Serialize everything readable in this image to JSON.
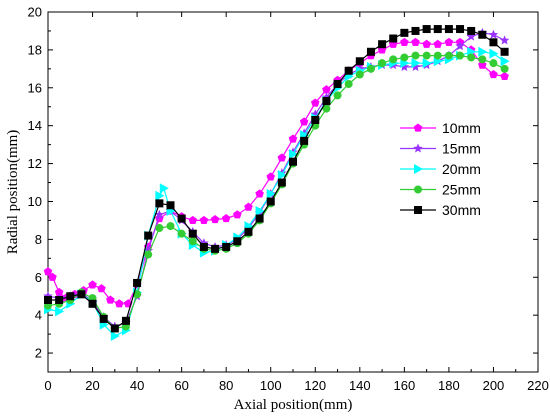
{
  "chart_data": {
    "type": "line",
    "xlabel": "Axial position(mm)",
    "ylabel": "Radial position(mm)",
    "xlim": [
      0,
      220
    ],
    "ylim": [
      1,
      20
    ],
    "xticks": [
      0,
      20,
      40,
      60,
      80,
      100,
      120,
      140,
      160,
      180,
      200,
      220
    ],
    "yticks": [
      2,
      4,
      6,
      8,
      10,
      12,
      14,
      16,
      18,
      20
    ],
    "grid": false,
    "legend": "right-middle",
    "series": [
      {
        "name": "10mm",
        "color": "#ff00ff",
        "marker": "pentagon",
        "x": [
          0,
          2,
          5,
          8,
          12,
          16,
          20,
          24,
          28,
          32,
          36,
          40,
          45,
          50,
          55,
          60,
          65,
          70,
          75,
          80,
          85,
          90,
          95,
          100,
          105,
          110,
          115,
          120,
          125,
          130,
          135,
          140,
          145,
          150,
          155,
          160,
          165,
          170,
          175,
          180,
          185,
          190,
          195,
          200,
          205
        ],
        "y": [
          6.3,
          6.0,
          5.2,
          4.9,
          5.1,
          5.3,
          5.6,
          5.4,
          4.8,
          4.6,
          4.6,
          5.6,
          7.6,
          9.1,
          9.5,
          9.2,
          9.0,
          9.0,
          9.05,
          9.1,
          9.3,
          9.7,
          10.4,
          11.3,
          12.3,
          13.3,
          14.2,
          15.2,
          15.9,
          16.4,
          16.9,
          17.3,
          17.7,
          18.0,
          18.3,
          18.4,
          18.4,
          18.3,
          18.3,
          18.4,
          18.4,
          18.0,
          17.2,
          16.7,
          16.6
        ]
      },
      {
        "name": "15mm",
        "color": "#9933ff",
        "marker": "star",
        "x": [
          0,
          5,
          10,
          15,
          20,
          25,
          30,
          35,
          40,
          45,
          50,
          55,
          60,
          65,
          70,
          75,
          80,
          85,
          90,
          95,
          100,
          105,
          110,
          115,
          120,
          125,
          130,
          135,
          140,
          145,
          150,
          155,
          160,
          165,
          170,
          175,
          180,
          185,
          190,
          195,
          200,
          205
        ],
        "y": [
          5.0,
          4.9,
          5.0,
          5.2,
          4.7,
          3.9,
          3.4,
          3.6,
          5.0,
          7.4,
          9.3,
          9.5,
          9.0,
          8.4,
          7.8,
          7.6,
          7.7,
          8.0,
          8.6,
          9.4,
          10.4,
          11.5,
          12.6,
          13.6,
          14.6,
          15.5,
          16.2,
          16.7,
          17.0,
          17.1,
          17.2,
          17.2,
          17.1,
          17.1,
          17.2,
          17.4,
          17.7,
          18.2,
          18.7,
          18.9,
          18.8,
          18.5
        ]
      },
      {
        "name": "20mm",
        "color": "#00ffff",
        "marker": "triangle-right",
        "x": [
          0,
          5,
          10,
          15,
          20,
          25,
          30,
          35,
          40,
          45,
          50,
          52,
          55,
          60,
          65,
          70,
          75,
          80,
          85,
          90,
          95,
          100,
          105,
          110,
          115,
          120,
          125,
          130,
          135,
          140,
          145,
          150,
          155,
          160,
          165,
          170,
          175,
          180,
          185,
          190,
          195,
          200,
          205
        ],
        "y": [
          4.3,
          4.2,
          4.6,
          5.1,
          4.7,
          3.5,
          2.9,
          3.2,
          5.2,
          8.2,
          10.3,
          10.7,
          9.5,
          8.3,
          7.7,
          7.3,
          7.4,
          7.7,
          8.1,
          8.7,
          9.5,
          10.4,
          11.4,
          12.5,
          13.5,
          14.4,
          15.3,
          16.0,
          16.6,
          16.9,
          17.1,
          17.2,
          17.3,
          17.3,
          17.3,
          17.3,
          17.4,
          17.5,
          17.7,
          17.9,
          17.9,
          17.8,
          17.4
        ]
      },
      {
        "name": "25mm",
        "color": "#33cc33",
        "marker": "circle",
        "x": [
          0,
          5,
          10,
          15,
          20,
          25,
          30,
          35,
          40,
          45,
          50,
          55,
          60,
          65,
          70,
          75,
          80,
          85,
          90,
          95,
          100,
          105,
          110,
          115,
          120,
          125,
          130,
          135,
          140,
          145,
          150,
          155,
          160,
          165,
          170,
          175,
          180,
          185,
          190,
          195,
          200,
          205
        ],
        "y": [
          4.5,
          4.6,
          4.8,
          5.2,
          4.9,
          3.9,
          3.3,
          3.4,
          5.1,
          7.2,
          8.6,
          8.7,
          8.3,
          7.9,
          7.5,
          7.4,
          7.5,
          7.8,
          8.3,
          9.0,
          9.9,
          10.9,
          12.0,
          13.0,
          14.0,
          14.9,
          15.6,
          16.2,
          16.7,
          17.0,
          17.3,
          17.5,
          17.6,
          17.7,
          17.7,
          17.7,
          17.7,
          17.7,
          17.6,
          17.5,
          17.3,
          17.0
        ]
      },
      {
        "name": "30mm",
        "color": "#000000",
        "marker": "square",
        "x": [
          0,
          5,
          10,
          15,
          20,
          25,
          30,
          35,
          40,
          45,
          50,
          55,
          60,
          65,
          70,
          75,
          80,
          85,
          90,
          95,
          100,
          105,
          110,
          115,
          120,
          125,
          130,
          135,
          140,
          145,
          150,
          155,
          160,
          165,
          170,
          175,
          180,
          185,
          190,
          195,
          200,
          205
        ],
        "y": [
          4.8,
          4.8,
          5.0,
          5.1,
          4.6,
          3.8,
          3.3,
          3.7,
          5.7,
          8.2,
          9.9,
          9.8,
          9.1,
          8.3,
          7.6,
          7.5,
          7.6,
          7.9,
          8.4,
          9.1,
          10.0,
          11.0,
          12.1,
          13.2,
          14.3,
          15.3,
          16.2,
          16.9,
          17.4,
          17.9,
          18.3,
          18.6,
          18.9,
          19.0,
          19.1,
          19.1,
          19.1,
          19.1,
          19.0,
          18.8,
          18.4,
          17.9
        ]
      }
    ]
  }
}
